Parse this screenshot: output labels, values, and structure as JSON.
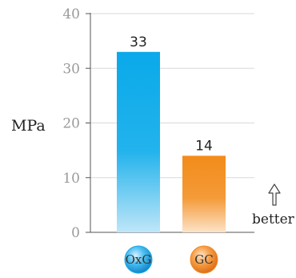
{
  "chart_data": {
    "type": "bar",
    "categories": [
      "OxG",
      "GC"
    ],
    "values": [
      33,
      14
    ],
    "ylabel": "MPa",
    "ylim": [
      0,
      40
    ],
    "yticks": [
      0,
      10,
      20,
      30,
      40
    ],
    "grid": true,
    "annotation": "better",
    "bar_colors": [
      "#14aee8",
      "#f2901c"
    ],
    "badge_colors": [
      "#1ea7e2",
      "#f28a25"
    ]
  }
}
